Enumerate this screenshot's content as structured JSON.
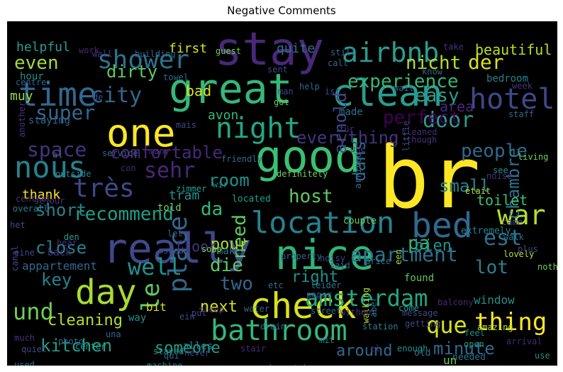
{
  "title": "Negative Comments",
  "palette": [
    "#fde725",
    "#b5de2b",
    "#6ece58",
    "#35b779",
    "#1f9e89",
    "#26828e",
    "#31688e",
    "#3e4989",
    "#482878",
    "#440154"
  ],
  "words": [
    {
      "text": "br",
      "color": "#fde725"
    },
    {
      "text": "stay",
      "color": "#482878"
    },
    {
      "text": "great",
      "color": "#35b779"
    },
    {
      "text": "clean",
      "color": "#2a9d8f"
    },
    {
      "text": "good",
      "color": "#3bbf73"
    },
    {
      "text": "nice",
      "color": "#2fb47c"
    },
    {
      "text": "one",
      "color": "#fde725"
    },
    {
      "text": "really",
      "color": "#3e4989"
    },
    {
      "text": "check",
      "color": "#d8e219"
    },
    {
      "text": "day",
      "color": "#a8db34"
    },
    {
      "text": "time",
      "color": "#31688e"
    },
    {
      "text": "nous",
      "color": "#26828e"
    },
    {
      "text": "night",
      "color": "#22a884"
    },
    {
      "text": "location",
      "color": "#26828e"
    },
    {
      "text": "bed",
      "color": "#31688e"
    },
    {
      "text": "bathroom",
      "color": "#35b779"
    },
    {
      "text": "hotel",
      "color": "#3e4989"
    },
    {
      "text": "shower",
      "color": "#2c728e"
    },
    {
      "text": "airbnb",
      "color": "#2a9d8f"
    },
    {
      "text": "très",
      "color": "#3e4989"
    },
    {
      "text": "war",
      "color": "#b5de2b"
    },
    {
      "text": "place",
      "color": "#31688e"
    },
    {
      "text": "le",
      "color": "#5ec962"
    },
    {
      "text": "amsterdam",
      "color": "#22a884"
    },
    {
      "text": "und",
      "color": "#6ece58"
    },
    {
      "text": "thing",
      "color": "#fde725"
    },
    {
      "text": "apartment",
      "color": "#2c728e"
    },
    {
      "text": "que",
      "color": "#d8e219"
    },
    {
      "text": "kitchen",
      "color": "#1f9e89"
    },
    {
      "text": "everything",
      "color": "#46337e"
    },
    {
      "text": "door",
      "color": "#2a9d8f"
    },
    {
      "text": "well",
      "color": "#21918c"
    },
    {
      "text": "sehr",
      "color": "#482878"
    },
    {
      "text": "city",
      "color": "#31688e"
    },
    {
      "text": "super",
      "color": "#31688e"
    },
    {
      "text": "experience",
      "color": "#35b779"
    },
    {
      "text": "nicht",
      "color": "#b5de2b"
    },
    {
      "text": "der",
      "color": "#d8e219"
    },
    {
      "text": "even",
      "color": "#a0da39"
    },
    {
      "text": "dirty",
      "color": "#5ec962"
    },
    {
      "text": "comfortable",
      "color": "#482878"
    },
    {
      "text": "recommend",
      "color": "#1f9e89"
    },
    {
      "text": "host",
      "color": "#5ec962"
    },
    {
      "text": "space",
      "color": "#46337e"
    },
    {
      "text": "dans",
      "color": "#31688e"
    },
    {
      "text": "arnold",
      "color": "#3e4989"
    },
    {
      "text": "easy",
      "color": "#2a9d8f"
    },
    {
      "text": "perfect",
      "color": "#440154"
    },
    {
      "text": "people",
      "color": "#31688e"
    },
    {
      "text": "chambre",
      "color": "#2c728e"
    },
    {
      "text": "small",
      "color": "#26828e"
    },
    {
      "text": "room",
      "color": "#21918c"
    },
    {
      "text": "short",
      "color": "#26828e"
    },
    {
      "text": "da",
      "color": "#35b779"
    },
    {
      "text": "est",
      "color": "#2c728e"
    },
    {
      "text": "close",
      "color": "#26828e"
    },
    {
      "text": "pa",
      "color": "#35b779"
    },
    {
      "text": "key",
      "color": "#26828e"
    },
    {
      "text": "die",
      "color": "#5ec962"
    },
    {
      "text": "two",
      "color": "#31688e"
    },
    {
      "text": "lot",
      "color": "#26828e"
    },
    {
      "text": "next",
      "color": "#d8e219"
    },
    {
      "text": "minute",
      "color": "#31688e"
    },
    {
      "text": "cleaning",
      "color": "#b5de2b"
    },
    {
      "text": "someone",
      "color": "#1f9e89"
    },
    {
      "text": "around",
      "color": "#31688e"
    },
    {
      "text": "communication",
      "color": "#482878"
    },
    {
      "text": "need",
      "color": "#5ec962"
    },
    {
      "text": "toilet",
      "color": "#3bbf73"
    },
    {
      "text": "bien",
      "color": "#21918c"
    },
    {
      "text": "pour",
      "color": "#b5de2b"
    },
    {
      "text": "right",
      "color": "#21918c"
    },
    {
      "text": "floor",
      "color": "#46337e"
    },
    {
      "text": "avon",
      "color": "#35b779"
    },
    {
      "text": "bad",
      "color": "#d8e219"
    },
    {
      "text": "beautiful",
      "color": "#b5de2b"
    },
    {
      "text": "helpful",
      "color": "#2a9d8f"
    },
    {
      "text": "first",
      "color": "#d8e219"
    },
    {
      "text": "quite",
      "color": "#2c728e"
    },
    {
      "text": "muy",
      "color": "#a0da39"
    },
    {
      "text": "hour",
      "color": "#21918c"
    },
    {
      "text": "de",
      "color": "#3e4989"
    },
    {
      "text": "staying",
      "color": "#31688e"
    },
    {
      "text": "tram",
      "color": "#21918c"
    },
    {
      "text": "thank",
      "color": "#fde725"
    },
    {
      "text": "told",
      "color": "#6ece58"
    },
    {
      "text": "located",
      "color": "#1f9e89"
    },
    {
      "text": "couple",
      "color": "#6ece58"
    },
    {
      "text": "extremely",
      "color": "#26828e"
    },
    {
      "text": "back",
      "color": "#46337e"
    },
    {
      "text": "appartement",
      "color": "#31688e"
    },
    {
      "text": "way",
      "color": "#21918c"
    },
    {
      "text": "bit",
      "color": "#d8e219"
    },
    {
      "text": "alles",
      "color": "#26828e"
    },
    {
      "text": "window",
      "color": "#21918c"
    },
    {
      "text": "bedroom",
      "color": "#26828e"
    },
    {
      "text": "area",
      "color": "#482878"
    },
    {
      "text": "found",
      "color": "#5ec962"
    },
    {
      "text": "made",
      "color": "#2c728e"
    },
    {
      "text": "living",
      "color": "#6ece58"
    },
    {
      "text": "see",
      "color": "#21918c"
    },
    {
      "text": "amazing",
      "color": "#b5de2b"
    },
    {
      "text": "feel",
      "color": "#21918c"
    },
    {
      "text": "open",
      "color": "#1f9e89"
    },
    {
      "text": "arrival",
      "color": "#482878"
    },
    {
      "text": "use",
      "color": "#21918c"
    },
    {
      "text": "lovely",
      "color": "#b5de2b"
    },
    {
      "text": "walk",
      "color": "#2c728e"
    },
    {
      "text": "plus",
      "color": "#3e4989"
    },
    {
      "text": "nothing",
      "color": "#6ece58"
    },
    {
      "text": "water",
      "color": "#31688e"
    },
    {
      "text": "make",
      "color": "#2c728e"
    },
    {
      "text": "come",
      "color": "#2a9d8f"
    },
    {
      "text": "etc",
      "color": "#2c728e"
    },
    {
      "text": "getting",
      "color": "#3e4989"
    },
    {
      "text": "enough",
      "color": "#21918c"
    },
    {
      "text": "un",
      "color": "#6ece58"
    },
    {
      "text": "old",
      "color": "#2c728e"
    },
    {
      "text": "needed",
      "color": "#2c728e"
    },
    {
      "text": "station",
      "color": "#26828e"
    },
    {
      "text": "walking",
      "color": "#b5de2b"
    },
    {
      "text": "sleep",
      "color": "#46337e"
    },
    {
      "text": "never",
      "color": "#3e4989"
    },
    {
      "text": "stayed",
      "color": "#21918c"
    },
    {
      "text": "center",
      "color": "#2a9d8f"
    },
    {
      "text": "photo",
      "color": "#31688e"
    },
    {
      "text": "much",
      "color": "#46337e"
    },
    {
      "text": "quiet",
      "color": "#3e4989"
    },
    {
      "text": "used",
      "color": "#2c728e"
    },
    {
      "text": "issue",
      "color": "#2c728e"
    },
    {
      "text": "stair",
      "color": "#482878"
    },
    {
      "text": "machine",
      "color": "#26828e"
    },
    {
      "text": "qui",
      "color": "#31688e"
    },
    {
      "text": "ein",
      "color": "#3e4989"
    },
    {
      "text": "put",
      "color": "#3e4989"
    },
    {
      "text": "drain",
      "color": "#31688e"
    },
    {
      "text": "paper",
      "color": "#3e4989"
    },
    {
      "text": "street",
      "color": "#31688e"
    },
    {
      "text": "mit",
      "color": "#26828e"
    },
    {
      "text": "leider",
      "color": "#2c728e"
    },
    {
      "text": "message",
      "color": "#3e4989"
    },
    {
      "text": "without",
      "color": "#46337e"
    },
    {
      "text": "property",
      "color": "#31688e"
    },
    {
      "text": "noisy",
      "color": "#3e4989"
    },
    {
      "text": "price",
      "color": "#2c728e"
    },
    {
      "text": "said",
      "color": "#31688e"
    },
    {
      "text": "balcony",
      "color": "#482878"
    },
    {
      "text": "een",
      "color": "#a0da39"
    },
    {
      "text": "aber",
      "color": "#2c728e"
    },
    {
      "text": "soap",
      "color": "#6ece58"
    },
    {
      "text": "asked",
      "color": "#3e4989"
    },
    {
      "text": "let",
      "color": "#31688e"
    },
    {
      "text": "den",
      "color": "#2a9d8f"
    },
    {
      "text": "hear",
      "color": "#46337e"
    },
    {
      "text": "eine",
      "color": "#3e4989"
    },
    {
      "text": "het",
      "color": "#3e4989"
    },
    {
      "text": "overall",
      "color": "#26828e"
    },
    {
      "text": "central",
      "color": "#46337e"
    },
    {
      "text": "séjour",
      "color": "#46337e"
    },
    {
      "text": "con",
      "color": "#482878"
    },
    {
      "text": "outside",
      "color": "#26828e"
    },
    {
      "text": "zimmer",
      "color": "#2a9d8f"
    },
    {
      "text": "wir",
      "color": "#21918c"
    },
    {
      "text": "friendly",
      "color": "#31688e"
    },
    {
      "text": "service",
      "color": "#31688e"
    },
    {
      "text": "canal",
      "color": "#3e4989"
    },
    {
      "text": "centre",
      "color": "#31688e"
    },
    {
      "text": "another",
      "color": "#46337e"
    },
    {
      "text": "staff",
      "color": "#31688e"
    },
    {
      "text": "got",
      "color": "#6ece58"
    },
    {
      "text": "man",
      "color": "#3e4989"
    },
    {
      "text": "ist",
      "color": "#3e4989"
    },
    {
      "text": "mais",
      "color": "#3e4989"
    },
    {
      "text": "towel",
      "color": "#31688e"
    },
    {
      "text": "für",
      "color": "#46337e"
    },
    {
      "text": "une",
      "color": "#46337e"
    },
    {
      "text": "cleaned",
      "color": "#482878"
    },
    {
      "text": "though",
      "color": "#46337e"
    },
    {
      "text": "noise",
      "color": "#46337e"
    },
    {
      "text": "était",
      "color": "#b5de2b"
    },
    {
      "text": "came",
      "color": "#3e4989"
    },
    {
      "text": "definitely",
      "color": "#6ece58"
    },
    {
      "text": "arrived",
      "color": "#2c728e"
    },
    {
      "text": "little",
      "color": "#3e4989"
    },
    {
      "text": "wall",
      "color": "#46337e"
    },
    {
      "text": "work",
      "color": "#482878"
    },
    {
      "text": "building",
      "color": "#31688e"
    },
    {
      "text": "guest",
      "color": "#6ece58"
    },
    {
      "text": "still",
      "color": "#31688e"
    },
    {
      "text": "call",
      "color": "#31688e"
    },
    {
      "text": "take",
      "color": "#46337e"
    },
    {
      "text": "wait",
      "color": "#31688e"
    },
    {
      "text": "know",
      "color": "#31688e"
    },
    {
      "text": "week",
      "color": "#46337e"
    },
    {
      "text": "sent",
      "color": "#3e4989"
    },
    {
      "text": "help",
      "color": "#31688e"
    },
    {
      "text": "many",
      "color": "#46337e"
    },
    {
      "text": "al",
      "color": "#31688e"
    },
    {
      "text": "una",
      "color": "#31688e"
    },
    {
      "text": "el",
      "color": "#482878"
    }
  ]
}
